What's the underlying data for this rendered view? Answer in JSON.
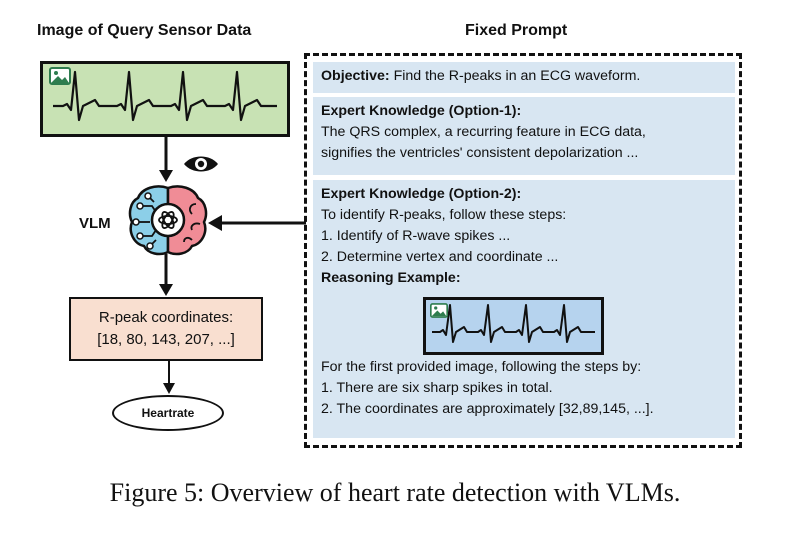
{
  "headers": {
    "left": "Image of Query Sensor Data",
    "right": "Fixed Prompt"
  },
  "vlm_label": "VLM",
  "coordinates_box": {
    "line1": "R-peak coordinates:",
    "line2": "[18, 80, 143, 207, ...]"
  },
  "heartrate_label": "Heartrate",
  "prompt": {
    "objective_label": "Objective:",
    "objective_text": "Find the R-peaks in an ECG waveform.",
    "option1_title": "Expert Knowledge (Option-1):",
    "option1_lines": [
      "The QRS complex, a recurring feature in ECG data,",
      "signifies the ventricles' consistent depolarization ..."
    ],
    "option2_title": "Expert Knowledge (Option-2):",
    "option2_lines": [
      "To identify R-peaks, follow these steps:",
      "1. Identify of R-wave spikes ...",
      "2. Determine vertex and coordinate ..."
    ],
    "reasoning_title": "Reasoning Example:",
    "reasoning_lines": [
      "For the first provided image, following the steps by:",
      "1. There are six sharp spikes in total.",
      "2. The coordinates are approximately [32,89,145, ...]."
    ]
  },
  "caption": "Figure 5: Overview of heart rate detection with VLMs.",
  "colors": {
    "query_image_bg": "#c8e2b4",
    "example_image_bg": "#b6d3ee",
    "section_bg": "#d8e6f2",
    "coord_box_bg": "#f9dfd0",
    "brain_left": "#8ccfe8",
    "brain_right": "#f08c96"
  },
  "icons": [
    "image-icon",
    "eye-icon",
    "brain-icon",
    "ai-logo-icon"
  ]
}
